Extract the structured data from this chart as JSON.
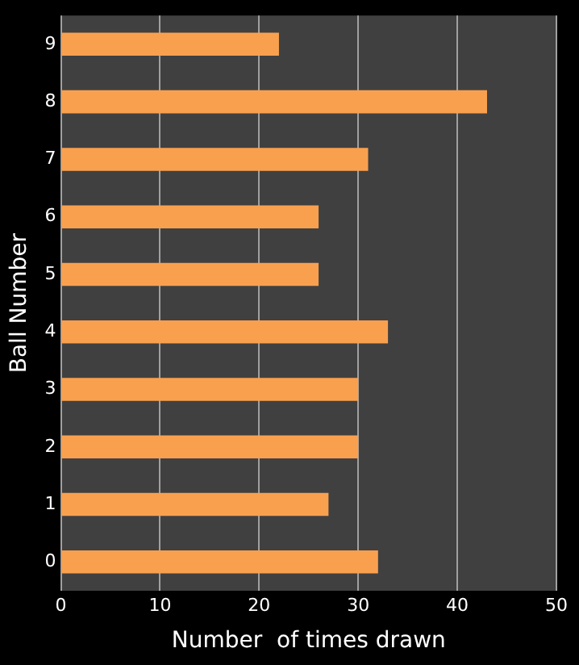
{
  "chart_data": {
    "type": "bar",
    "orientation": "horizontal",
    "xlabel": "Number  of times drawn",
    "ylabel": "Ball Number",
    "categories": [
      "9",
      "8",
      "7",
      "6",
      "5",
      "4",
      "3",
      "2",
      "1",
      "0"
    ],
    "values": [
      22,
      43,
      31,
      26,
      26,
      33,
      30,
      30,
      27,
      32
    ],
    "color": "#f9a04f",
    "xlim": [
      0,
      50
    ],
    "xticks": [
      0,
      10,
      20,
      30,
      40,
      50
    ],
    "grid": "x",
    "legend": false
  }
}
